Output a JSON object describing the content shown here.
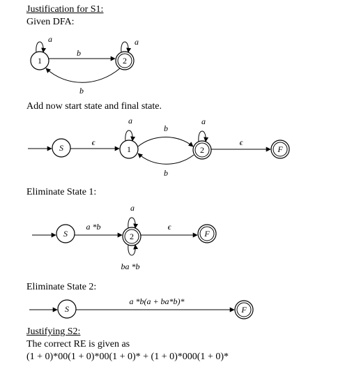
{
  "heading_s1": "Justification for S1:",
  "given_dfa": "Given DFA:",
  "dfa": {
    "state1": "1",
    "state2": "2",
    "loop1": "a",
    "loop2": "a",
    "edge_12": "b",
    "edge_21": "b"
  },
  "add_start_final": "Add now start state and final state.",
  "diagram2": {
    "start": "S",
    "final": "F",
    "state1": "1",
    "state2": "2",
    "eps_left": "ϵ",
    "eps_right": "ϵ",
    "loop1": "a",
    "loop2": "a",
    "edge_12": "b",
    "edge_21": "b"
  },
  "eliminate1": "Eliminate State 1:",
  "diagram3": {
    "start": "S",
    "final": "F",
    "state2": "2",
    "edge_s2": "a *b",
    "loop_top": "a",
    "loop_bottom": "ba *b",
    "eps": "ϵ"
  },
  "eliminate2": "Eliminate State 2:",
  "diagram4": {
    "start": "S",
    "final": "F",
    "edge": "a *b(a + ba*b)*"
  },
  "heading_s2": "Justifying S2:",
  "correct_re": "The correct RE is given as",
  "formula": "(1 + 0)*00(1 + 0)*00(1 + 0)* + (1 + 0)*000(1 + 0)*"
}
